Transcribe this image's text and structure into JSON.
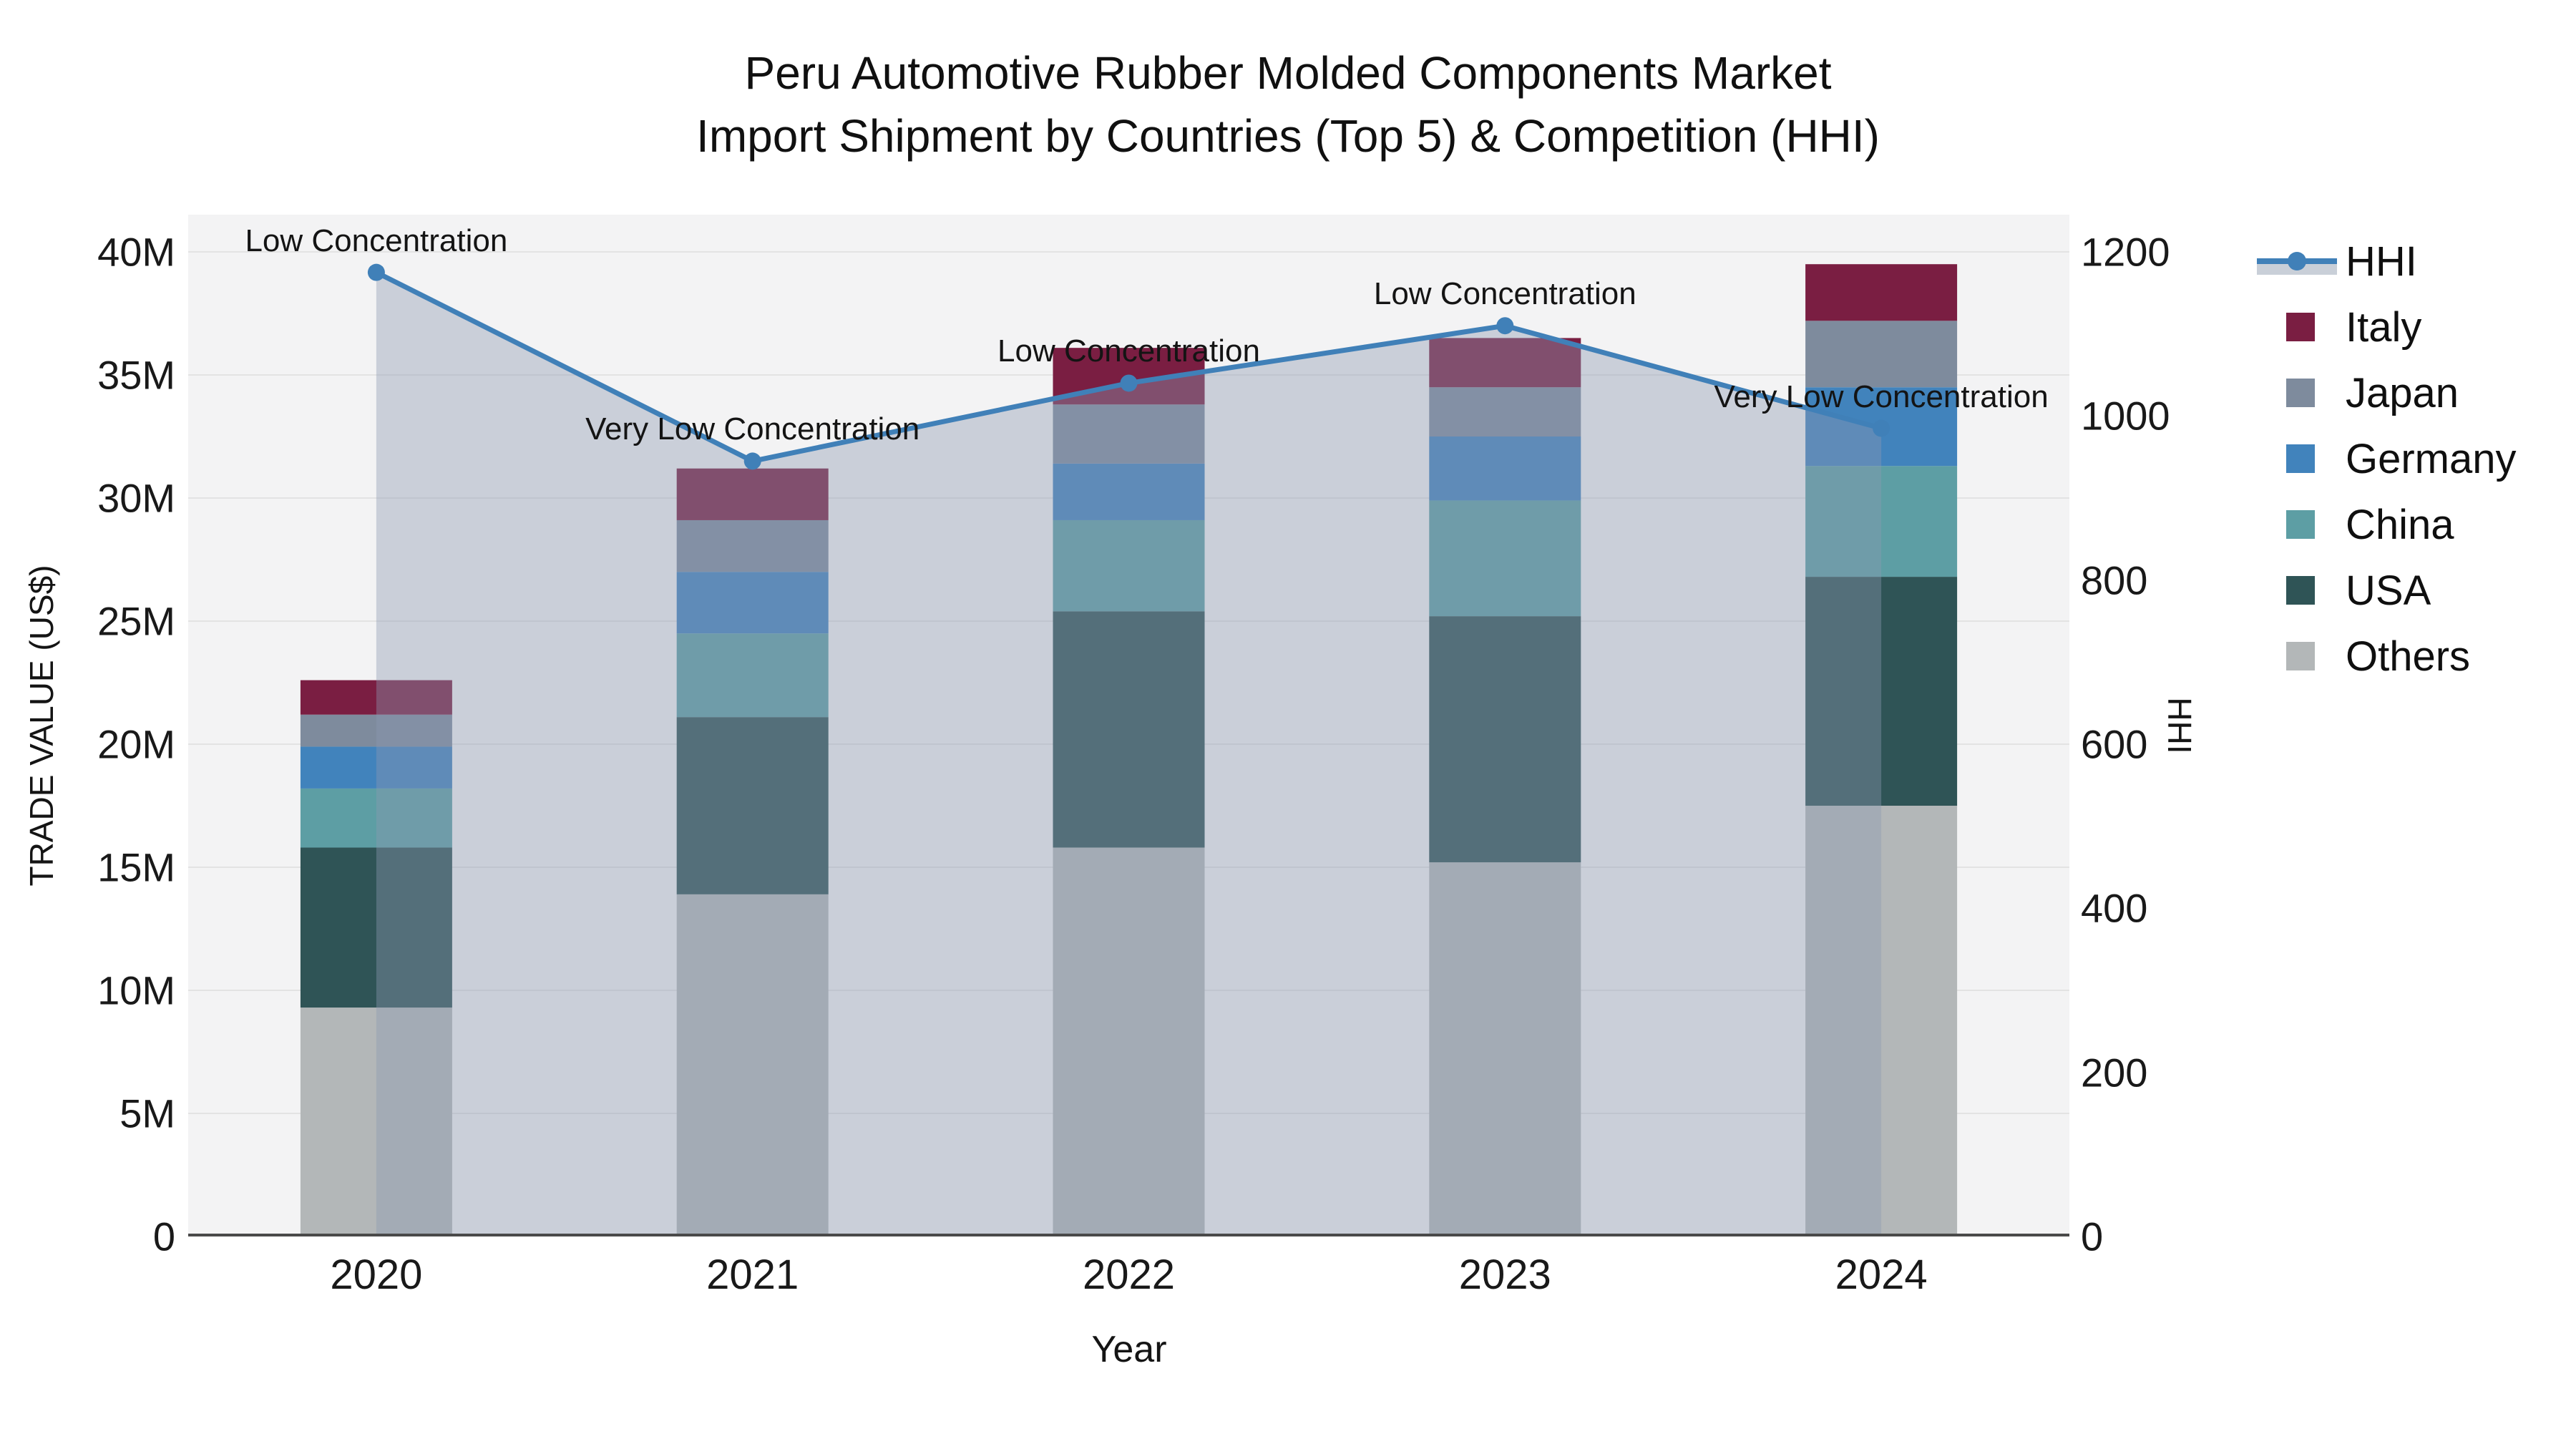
{
  "title": {
    "line1": "Peru Automotive Rubber Molded Components Market",
    "line2": "Import Shipment by Countries (Top 5) & Competition (HHI)"
  },
  "axes": {
    "left": {
      "title": "TRADE VALUE (US$)",
      "ticks": [
        {
          "label": "0",
          "value": 0
        },
        {
          "label": "5M",
          "value": 5
        },
        {
          "label": "10M",
          "value": 10
        },
        {
          "label": "15M",
          "value": 15
        },
        {
          "label": "20M",
          "value": 20
        },
        {
          "label": "25M",
          "value": 25
        },
        {
          "label": "30M",
          "value": 30
        },
        {
          "label": "35M",
          "value": 35
        },
        {
          "label": "40M",
          "value": 40
        }
      ]
    },
    "right": {
      "title": "HHI",
      "ticks": [
        {
          "label": "0",
          "value": 0
        },
        {
          "label": "200",
          "value": 200
        },
        {
          "label": "400",
          "value": 400
        },
        {
          "label": "600",
          "value": 600
        },
        {
          "label": "800",
          "value": 800
        },
        {
          "label": "1000",
          "value": 1000
        },
        {
          "label": "1200",
          "value": 1200
        }
      ]
    },
    "x": {
      "title": "Year",
      "categories": [
        "2020",
        "2021",
        "2022",
        "2023",
        "2024"
      ]
    }
  },
  "legend": {
    "items": [
      {
        "label": "HHI",
        "type": "line",
        "color": "#4080B8"
      },
      {
        "label": "Italy",
        "type": "swatch",
        "color": "#7A1E42"
      },
      {
        "label": "Japan",
        "type": "swatch",
        "color": "#7E8B9D"
      },
      {
        "label": "Germany",
        "type": "swatch",
        "color": "#4183BC"
      },
      {
        "label": "China",
        "type": "swatch",
        "color": "#5D9EA4"
      },
      {
        "label": "USA",
        "type": "swatch",
        "color": "#2F5456"
      },
      {
        "label": "Others",
        "type": "swatch",
        "color": "#B3B7B8"
      }
    ]
  },
  "chart_data": {
    "type": "bar",
    "stacked": true,
    "title": "Peru Automotive Rubber Molded Components Market — Import Shipment by Countries (Top 5) & Competition (HHI)",
    "xlabel": "Year",
    "ylabel_left": "TRADE VALUE (US$)",
    "ylabel_right": "HHI",
    "categories": [
      "2020",
      "2021",
      "2022",
      "2023",
      "2024"
    ],
    "unit": "million US$",
    "ylim_left_millions": [
      0,
      40
    ],
    "ylim_right": [
      0,
      1200
    ],
    "grid": true,
    "legend_position": "right",
    "series": [
      {
        "name": "Others",
        "color": "#B3B7B8",
        "values": [
          9.3,
          13.9,
          15.8,
          15.2,
          17.5
        ]
      },
      {
        "name": "USA",
        "color": "#2F5456",
        "values": [
          6.5,
          7.2,
          9.6,
          10.0,
          9.3
        ]
      },
      {
        "name": "China",
        "color": "#5D9EA4",
        "values": [
          2.4,
          3.4,
          3.7,
          4.7,
          4.5
        ]
      },
      {
        "name": "Germany",
        "color": "#4183BC",
        "values": [
          1.7,
          2.5,
          2.3,
          2.6,
          3.2
        ]
      },
      {
        "name": "Japan",
        "color": "#7E8B9D",
        "values": [
          1.3,
          2.1,
          2.4,
          2.0,
          2.7
        ]
      },
      {
        "name": "Italy",
        "color": "#7A1E42",
        "values": [
          1.4,
          2.1,
          2.3,
          2.0,
          2.3
        ]
      }
    ],
    "bar_totals_millions": [
      22.6,
      31.2,
      36.1,
      36.5,
      39.5
    ],
    "line": {
      "name": "HHI",
      "color": "#4080B8",
      "area_fill": "rgba(140,153,178,0.40)",
      "values": [
        1175,
        945,
        1040,
        1110,
        985
      ]
    },
    "annotations": [
      {
        "category": "2020",
        "text": "Low Concentration"
      },
      {
        "category": "2021",
        "text": "Very Low Concentration"
      },
      {
        "category": "2022",
        "text": "Low Concentration"
      },
      {
        "category": "2023",
        "text": "Low Concentration"
      },
      {
        "category": "2024",
        "text": "Very Low Concentration"
      }
    ]
  }
}
